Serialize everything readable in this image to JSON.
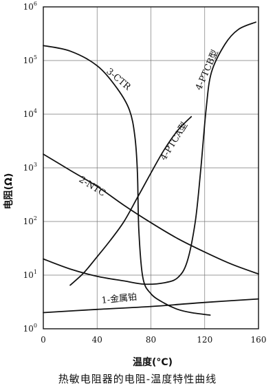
{
  "chart_data": {
    "type": "line",
    "title": "",
    "caption": "热敏电阻器的电阻-温度特性曲线",
    "xlabel": "温度(°C)",
    "ylabel": "电阻(Ω)",
    "xlim": [
      0,
      160
    ],
    "x_ticks": [
      0,
      40,
      80,
      120,
      160
    ],
    "y_scale": "log",
    "ylim": [
      1,
      1000000
    ],
    "y_ticks": [
      {
        "base": "10",
        "exp": "0"
      },
      {
        "base": "10",
        "exp": "1"
      },
      {
        "base": "10",
        "exp": "2"
      },
      {
        "base": "10",
        "exp": "3"
      },
      {
        "base": "10",
        "exp": "4"
      },
      {
        "base": "10",
        "exp": "5"
      },
      {
        "base": "10",
        "exp": "6"
      }
    ],
    "grid": true,
    "series": [
      {
        "name": "1-金属铂",
        "points": [
          [
            0,
            2.0
          ],
          [
            40,
            2.3
          ],
          [
            80,
            2.6
          ],
          [
            120,
            3.1
          ],
          [
            160,
            3.6
          ]
        ]
      },
      {
        "name": "2-NTC",
        "points": [
          [
            0,
            1800
          ],
          [
            20,
            900
          ],
          [
            40,
            450
          ],
          [
            60,
            200
          ],
          [
            80,
            95
          ],
          [
            100,
            48
          ],
          [
            120,
            27
          ],
          [
            140,
            16
          ],
          [
            160,
            10.5
          ]
        ]
      },
      {
        "name": "3-CTR",
        "points": [
          [
            0,
            190000
          ],
          [
            20,
            150000
          ],
          [
            40,
            80000
          ],
          [
            55,
            30000
          ],
          [
            64,
            12000
          ],
          [
            68,
            4000
          ],
          [
            70,
            800
          ],
          [
            71,
            70
          ],
          [
            74,
            9
          ],
          [
            80,
            4.5
          ],
          [
            90,
            3
          ],
          [
            100,
            2.3
          ],
          [
            110,
            2.0
          ],
          [
            124,
            1.8
          ]
        ]
      },
      {
        "name": "4-PTCA型",
        "points": [
          [
            20,
            6.5
          ],
          [
            30,
            11
          ],
          [
            40,
            22
          ],
          [
            50,
            45
          ],
          [
            60,
            100
          ],
          [
            70,
            280
          ],
          [
            80,
            800
          ],
          [
            90,
            2200
          ],
          [
            100,
            5000
          ],
          [
            110,
            9000
          ]
        ]
      },
      {
        "name": "4-PTCB型",
        "points": [
          [
            0,
            20
          ],
          [
            20,
            13
          ],
          [
            40,
            9.5
          ],
          [
            60,
            7.8
          ],
          [
            75,
            6.8
          ],
          [
            90,
            7.2
          ],
          [
            100,
            9
          ],
          [
            107,
            18
          ],
          [
            113,
            100
          ],
          [
            117,
            900
          ],
          [
            121,
            12000
          ],
          [
            125,
            60000
          ],
          [
            135,
            200000
          ],
          [
            145,
            380000
          ],
          [
            158,
            520000
          ]
        ]
      }
    ]
  },
  "labels": {
    "s1": "1-金属铂",
    "s2": "2-NTC",
    "s3": "3-CTR",
    "s4a": "4-PTCA型",
    "s4b": "4-PTCB型"
  },
  "colors": {
    "line": "#111111",
    "grid": "#777777",
    "background": "#ffffff"
  }
}
